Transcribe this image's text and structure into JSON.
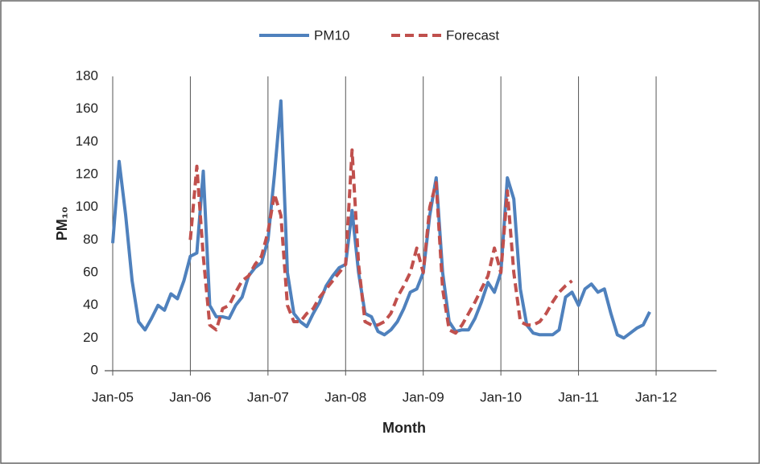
{
  "chart_data": {
    "type": "line",
    "legend": "top",
    "x_label": "Month",
    "y_label": "PM₁₀",
    "ylim": [
      0,
      180
    ],
    "yticks": [
      0,
      20,
      40,
      60,
      80,
      100,
      120,
      140,
      160,
      180
    ],
    "categories": [
      "Jan-05",
      null,
      null,
      null,
      null,
      null,
      null,
      null,
      null,
      null,
      null,
      null,
      "Jan-06",
      null,
      null,
      null,
      null,
      null,
      null,
      null,
      null,
      null,
      null,
      null,
      "Jan-07",
      null,
      null,
      null,
      null,
      null,
      null,
      null,
      null,
      null,
      null,
      null,
      "Jan-08",
      null,
      null,
      null,
      null,
      null,
      null,
      null,
      null,
      null,
      null,
      null,
      "Jan-09",
      null,
      null,
      null,
      null,
      null,
      null,
      null,
      null,
      null,
      null,
      null,
      "Jan-10",
      null,
      null,
      null,
      null,
      null,
      null,
      null,
      null,
      null,
      null,
      null,
      "Jan-11",
      null,
      null,
      null,
      null,
      null,
      null,
      null,
      null,
      null,
      null,
      null,
      "Jan-12"
    ],
    "series": [
      {
        "name": "PM10",
        "color": "#4f81bd",
        "dash": false,
        "values": [
          78,
          128,
          95,
          55,
          30,
          25,
          32,
          40,
          37,
          47,
          44,
          55,
          70,
          72,
          122,
          40,
          33,
          33,
          32,
          40,
          45,
          58,
          63,
          66,
          80,
          120,
          165,
          60,
          35,
          30,
          27,
          35,
          42,
          52,
          58,
          63,
          65,
          98,
          60,
          35,
          33,
          24,
          22,
          25,
          30,
          38,
          48,
          50,
          60,
          95,
          118,
          60,
          30,
          24,
          25,
          25,
          32,
          42,
          54,
          48,
          60,
          118,
          105,
          50,
          28,
          23,
          22,
          22,
          22,
          25,
          45,
          48,
          40,
          50,
          53,
          48,
          50,
          35,
          22,
          20,
          23,
          26,
          28,
          36,
          null
        ]
      },
      {
        "name": "Forecast",
        "color": "#c0504d",
        "dash": true,
        "values": [
          null,
          null,
          null,
          null,
          null,
          null,
          null,
          null,
          null,
          null,
          null,
          null,
          80,
          125,
          70,
          28,
          25,
          38,
          40,
          48,
          55,
          58,
          65,
          70,
          85,
          108,
          95,
          40,
          30,
          30,
          35,
          38,
          45,
          50,
          55,
          60,
          65,
          135,
          65,
          30,
          28,
          28,
          30,
          35,
          45,
          52,
          60,
          75,
          60,
          100,
          115,
          50,
          25,
          23,
          28,
          35,
          42,
          50,
          58,
          75,
          60,
          110,
          60,
          30,
          28,
          28,
          30,
          35,
          42,
          48,
          52,
          55,
          null,
          null,
          null,
          null,
          null,
          null,
          null,
          null,
          null,
          null,
          null,
          null,
          null
        ]
      }
    ]
  }
}
